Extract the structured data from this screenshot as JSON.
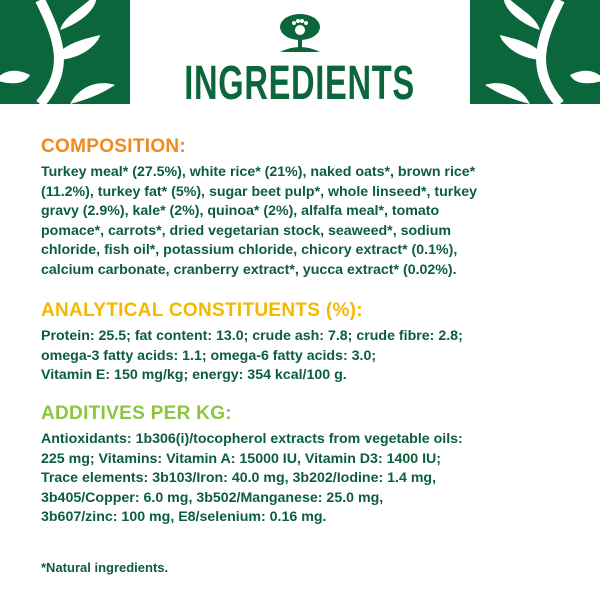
{
  "header": {
    "title": "INGREDIENTS",
    "logo": "tree-paw-logo"
  },
  "colors": {
    "green": "#0b663c",
    "orange": "#f08a1c",
    "yellow": "#f5b800",
    "lime": "#8cc63f"
  },
  "composition": {
    "heading": "COMPOSITION:",
    "lines": [
      "Turkey meal* (27.5%), white rice* (21%), naked oats*, brown rice*",
      "(11.2%), turkey fat* (5%), sugar beet pulp*, whole linseed*, turkey",
      "gravy (2.9%), kale* (2%), quinoa* (2%), alfalfa meal*, tomato",
      "pomace*, carrots*, dried vegetarian stock, seaweed*, sodium",
      "chloride, fish oil*, potassium chloride, chicory extract* (0.1%),",
      "calcium carbonate, cranberry extract*, yucca extract* (0.02%)."
    ]
  },
  "analytical": {
    "heading": "ANALYTICAL CONSTITUENTS (%):",
    "lines": [
      "Protein: 25.5; fat content: 13.0; crude ash: 7.8; crude fibre: 2.8;",
      "omega-3 fatty acids: 1.1; omega-6 fatty acids: 3.0;",
      "Vitamin E: 150 mg/kg; energy: 354 kcal/100 g."
    ]
  },
  "additives": {
    "heading": "ADDITIVES PER KG:",
    "lines": [
      "Antioxidants: 1b306(i)/tocopherol extracts from vegetable oils:",
      "225 mg; Vitamins: Vitamin A: 15000 IU, Vitamin D3: 1400 IU;",
      "Trace elements: 3b103/Iron: 40.0 mg, 3b202/Iodine: 1.4 mg,",
      "3b405/Copper: 6.0 mg, 3b502/Manganese: 25.0 mg,",
      "3b607/zinc: 100 mg, E8/selenium: 0.16 mg."
    ]
  },
  "footnote": "*Natural ingredients."
}
